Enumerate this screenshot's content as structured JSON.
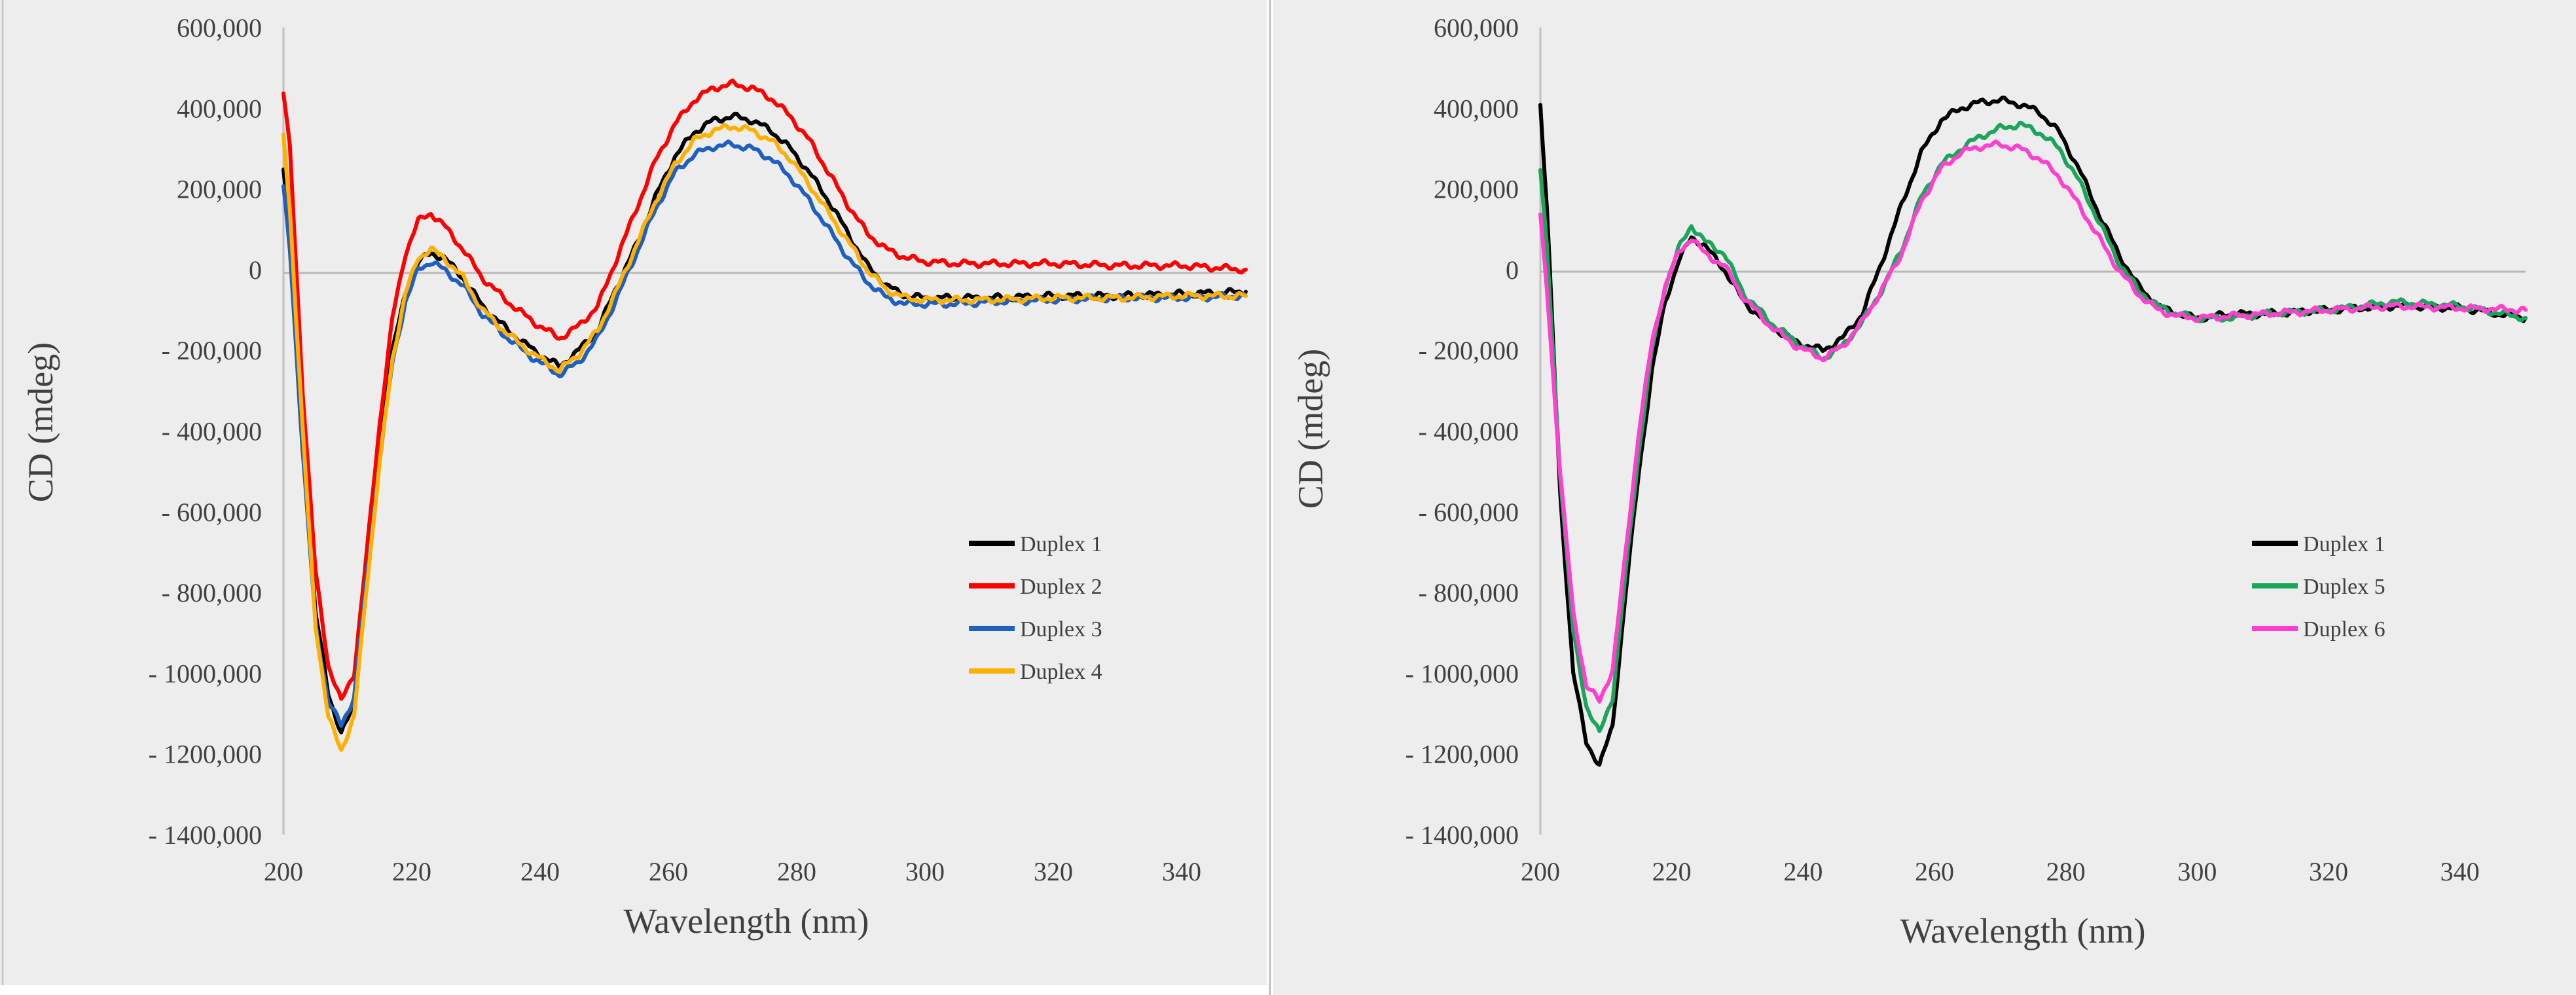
{
  "chart_data": [
    {
      "type": "line",
      "title": "",
      "xlabel": "Wavelength (nm)",
      "ylabel": "CD (mdeg)",
      "xlim": [
        200,
        350
      ],
      "ylim": [
        -1400000,
        600000
      ],
      "x_ticks": [
        200,
        220,
        240,
        260,
        280,
        300,
        320,
        340
      ],
      "x_tick_labels": [
        "200",
        "220",
        "240",
        "260",
        "280",
        "300",
        "320",
        "340"
      ],
      "y_ticks": [
        600000,
        400000,
        200000,
        0,
        -200000,
        -400000,
        -600000,
        -800000,
        -1000000,
        -1200000,
        -1400000
      ],
      "y_tick_labels": [
        "600,000",
        "400,000",
        "200,000",
        "0",
        "- 200,000",
        "- 400,000",
        "- 600,000",
        "- 800,000",
        "- 1000,000",
        "- 1200,000",
        "- 1400,000"
      ],
      "grid": false,
      "zero_line": true,
      "legend_position": "lower-right",
      "series": [
        {
          "name": "Duplex 1",
          "color": "#000000",
          "x": [
            200,
            201,
            203,
            205,
            207,
            209,
            211,
            213,
            215,
            217,
            219,
            221,
            223,
            225,
            228,
            231,
            235,
            239,
            243,
            246,
            249,
            252,
            255,
            258,
            261,
            264,
            267,
            270,
            273,
            276,
            279,
            282,
            285,
            288,
            291,
            294,
            297,
            300,
            305,
            310,
            320,
            330,
            340,
            350
          ],
          "y": [
            250000,
            100000,
            -400000,
            -850000,
            -1050000,
            -1150000,
            -1080000,
            -750000,
            -450000,
            -200000,
            -60000,
            20000,
            40000,
            30000,
            -20000,
            -90000,
            -150000,
            -200000,
            -240000,
            -200000,
            -150000,
            -40000,
            60000,
            180000,
            280000,
            340000,
            370000,
            380000,
            370000,
            345000,
            300000,
            240000,
            170000,
            90000,
            10000,
            -40000,
            -65000,
            -70000,
            -70000,
            -70000,
            -65000,
            -65000,
            -60000,
            -55000
          ]
        },
        {
          "name": "Duplex 2",
          "color": "#ff0000",
          "x": [
            200,
            201,
            203,
            205,
            207,
            209,
            211,
            213,
            215,
            217,
            219,
            221,
            223,
            225,
            228,
            231,
            235,
            239,
            243,
            246,
            249,
            252,
            255,
            258,
            261,
            264,
            267,
            270,
            273,
            276,
            279,
            282,
            285,
            288,
            291,
            294,
            297,
            300,
            305,
            310,
            320,
            330,
            340,
            350
          ],
          "y": [
            440000,
            300000,
            -300000,
            -750000,
            -980000,
            -1070000,
            -1000000,
            -700000,
            -380000,
            -120000,
            40000,
            120000,
            140000,
            110000,
            50000,
            -20000,
            -80000,
            -130000,
            -170000,
            -140000,
            -90000,
            30000,
            150000,
            270000,
            360000,
            420000,
            450000,
            460000,
            450000,
            425000,
            380000,
            320000,
            240000,
            160000,
            90000,
            50000,
            30000,
            20000,
            15000,
            15000,
            15000,
            10000,
            10000,
            0
          ]
        },
        {
          "name": "Duplex 3",
          "color": "#1f5fbf",
          "x": [
            200,
            201,
            203,
            205,
            207,
            209,
            211,
            213,
            215,
            217,
            219,
            221,
            223,
            225,
            228,
            231,
            235,
            239,
            243,
            246,
            249,
            252,
            255,
            258,
            261,
            264,
            267,
            270,
            273,
            276,
            279,
            282,
            285,
            288,
            291,
            294,
            297,
            300,
            305,
            310,
            320,
            330,
            340,
            350
          ],
          "y": [
            200000,
            50000,
            -450000,
            -880000,
            -1070000,
            -1130000,
            -1060000,
            -760000,
            -470000,
            -230000,
            -80000,
            0,
            20000,
            0,
            -40000,
            -110000,
            -170000,
            -220000,
            -260000,
            -230000,
            -170000,
            -70000,
            40000,
            150000,
            240000,
            285000,
            305000,
            310000,
            300000,
            275000,
            230000,
            170000,
            100000,
            30000,
            -30000,
            -70000,
            -85000,
            -85000,
            -85000,
            -80000,
            -75000,
            -70000,
            -70000,
            -65000
          ]
        },
        {
          "name": "Duplex 4",
          "color": "#ffb000",
          "x": [
            200,
            201,
            203,
            205,
            207,
            209,
            211,
            213,
            215,
            217,
            219,
            221,
            223,
            225,
            228,
            231,
            235,
            239,
            243,
            246,
            249,
            252,
            255,
            258,
            261,
            264,
            267,
            270,
            273,
            276,
            279,
            282,
            285,
            288,
            291,
            294,
            297,
            300,
            305,
            310,
            320,
            330,
            340,
            350
          ],
          "y": [
            330000,
            150000,
            -400000,
            -880000,
            -1110000,
            -1190000,
            -1110000,
            -780000,
            -480000,
            -220000,
            -60000,
            30000,
            50000,
            30000,
            -20000,
            -100000,
            -160000,
            -210000,
            -250000,
            -210000,
            -150000,
            -50000,
            60000,
            170000,
            260000,
            320000,
            345000,
            355000,
            345000,
            320000,
            275000,
            210000,
            140000,
            70000,
            0,
            -50000,
            -70000,
            -75000,
            -75000,
            -75000,
            -70000,
            -70000,
            -65000,
            -65000
          ]
        }
      ]
    },
    {
      "type": "line",
      "title": "",
      "xlabel": "Wavelength (nm)",
      "ylabel": "CD (mdeg)",
      "xlim": [
        200,
        350
      ],
      "ylim": [
        -1400000,
        600000
      ],
      "x_ticks": [
        200,
        220,
        240,
        260,
        280,
        300,
        320,
        340
      ],
      "x_tick_labels": [
        "200",
        "220",
        "240",
        "260",
        "280",
        "300",
        "320",
        "340"
      ],
      "y_ticks": [
        600000,
        400000,
        200000,
        0,
        -200000,
        -400000,
        -600000,
        -800000,
        -1000000,
        -1200000,
        -1400000
      ],
      "y_tick_labels": [
        "600,000",
        "400,000",
        "200,000",
        "0",
        "- 200,000",
        "- 400,000",
        "- 600,000",
        "- 800,000",
        "- 1000,000",
        "- 1200,000",
        "- 1400,000"
      ],
      "grid": false,
      "zero_line": true,
      "legend_position": "lower-right",
      "series": [
        {
          "name": "Duplex 1",
          "color": "#000000",
          "x": [
            200,
            201,
            203,
            205,
            207,
            209,
            211,
            213,
            215,
            217,
            219,
            221,
            223,
            225,
            228,
            231,
            235,
            239,
            243,
            246,
            249,
            252,
            255,
            258,
            261,
            264,
            267,
            270,
            273,
            276,
            279,
            282,
            285,
            288,
            291,
            294,
            297,
            300,
            305,
            310,
            320,
            330,
            340,
            350
          ],
          "y": [
            410000,
            150000,
            -550000,
            -1000000,
            -1170000,
            -1230000,
            -1130000,
            -800000,
            -500000,
            -250000,
            -80000,
            20000,
            80000,
            60000,
            0,
            -80000,
            -140000,
            -180000,
            -200000,
            -170000,
            -110000,
            20000,
            160000,
            290000,
            370000,
            400000,
            415000,
            420000,
            410000,
            390000,
            340000,
            250000,
            140000,
            40000,
            -40000,
            -90000,
            -110000,
            -120000,
            -110000,
            -110000,
            -100000,
            -90000,
            -95000,
            -120000
          ]
        },
        {
          "name": "Duplex 5",
          "color": "#1aa65a",
          "x": [
            200,
            201,
            203,
            205,
            207,
            209,
            211,
            213,
            215,
            217,
            219,
            221,
            223,
            225,
            228,
            231,
            235,
            239,
            243,
            246,
            249,
            252,
            255,
            258,
            261,
            264,
            267,
            270,
            273,
            276,
            279,
            282,
            285,
            288,
            291,
            294,
            297,
            300,
            305,
            310,
            320,
            330,
            340,
            350
          ],
          "y": [
            250000,
            50000,
            -500000,
            -900000,
            -1080000,
            -1150000,
            -1060000,
            -750000,
            -450000,
            -200000,
            -40000,
            50000,
            110000,
            70000,
            40000,
            -60000,
            -130000,
            -180000,
            -220000,
            -190000,
            -130000,
            -50000,
            50000,
            180000,
            260000,
            300000,
            330000,
            350000,
            360000,
            340000,
            300000,
            220000,
            120000,
            20000,
            -50000,
            -90000,
            -110000,
            -120000,
            -120000,
            -110000,
            -100000,
            -80000,
            -90000,
            -120000
          ]
        },
        {
          "name": "Duplex 6",
          "color": "#ff3fcf",
          "x": [
            200,
            201,
            203,
            205,
            207,
            209,
            211,
            213,
            215,
            217,
            219,
            221,
            223,
            225,
            228,
            231,
            235,
            239,
            243,
            246,
            249,
            252,
            255,
            258,
            261,
            264,
            267,
            270,
            273,
            276,
            279,
            282,
            285,
            288,
            291,
            294,
            297,
            300,
            305,
            310,
            320,
            330,
            340,
            350
          ],
          "y": [
            130000,
            -50000,
            -500000,
            -850000,
            -1030000,
            -1070000,
            -990000,
            -700000,
            -400000,
            -180000,
            -40000,
            40000,
            80000,
            40000,
            10000,
            -70000,
            -140000,
            -190000,
            -220000,
            -190000,
            -130000,
            -50000,
            40000,
            170000,
            250000,
            290000,
            305000,
            310000,
            300000,
            275000,
            230000,
            160000,
            80000,
            0,
            -60000,
            -100000,
            -115000,
            -120000,
            -115000,
            -110000,
            -100000,
            -90000,
            -95000,
            -100000
          ]
        }
      ]
    }
  ]
}
